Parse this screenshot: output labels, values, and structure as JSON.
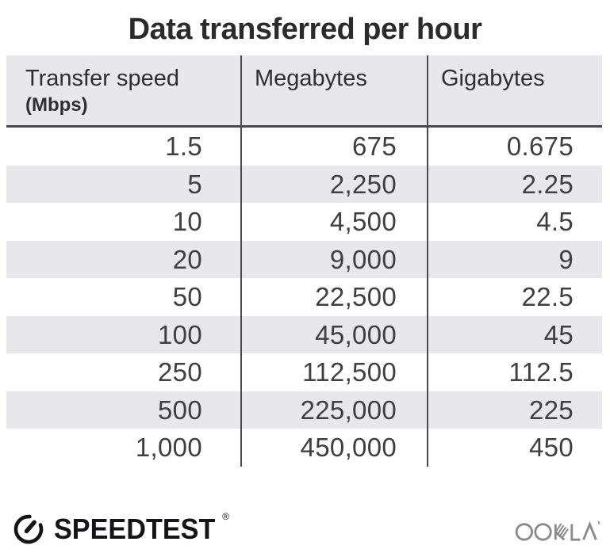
{
  "title": "Data transferred per hour",
  "table": {
    "columns": [
      {
        "label": "Transfer speed",
        "sublabel": "(Mbps)"
      },
      {
        "label": "Megabytes"
      },
      {
        "label": "Gigabytes"
      }
    ],
    "rows": [
      [
        "1.5",
        "675",
        "0.675"
      ],
      [
        "5",
        "2,250",
        "2.25"
      ],
      [
        "10",
        "4,500",
        "4.5"
      ],
      [
        "20",
        "9,000",
        "9"
      ],
      [
        "50",
        "22,500",
        "22.5"
      ],
      [
        "100",
        "45,000",
        "45"
      ],
      [
        "250",
        "112,500",
        "112.5"
      ],
      [
        "500",
        "225,000",
        "225"
      ],
      [
        "1,000",
        "450,000",
        "450"
      ]
    ]
  },
  "footer": {
    "speedtest_label": "SPEEDTEST",
    "speedtest_trademark": "®",
    "ookla_label": "OOKLA"
  },
  "colors": {
    "header_bg": "#e8e7eb",
    "stripe": "#e8e7eb",
    "divider": "#4a494d",
    "title_text": "#2b2b2b",
    "cell_text": "#3f3f3f",
    "speedtest_text": "#15141a",
    "ookla_gray": "#8b8a8e"
  },
  "chart_data": {
    "type": "table",
    "title": "Data transferred per hour",
    "columns": [
      "Transfer speed (Mbps)",
      "Megabytes",
      "Gigabytes"
    ],
    "rows": [
      [
        1.5,
        675,
        0.675
      ],
      [
        5,
        2250,
        2.25
      ],
      [
        10,
        4500,
        4.5
      ],
      [
        20,
        9000,
        9
      ],
      [
        50,
        22500,
        22.5
      ],
      [
        100,
        45000,
        45
      ],
      [
        250,
        112500,
        112.5
      ],
      [
        500,
        225000,
        225
      ],
      [
        1000,
        450000,
        450
      ]
    ]
  }
}
